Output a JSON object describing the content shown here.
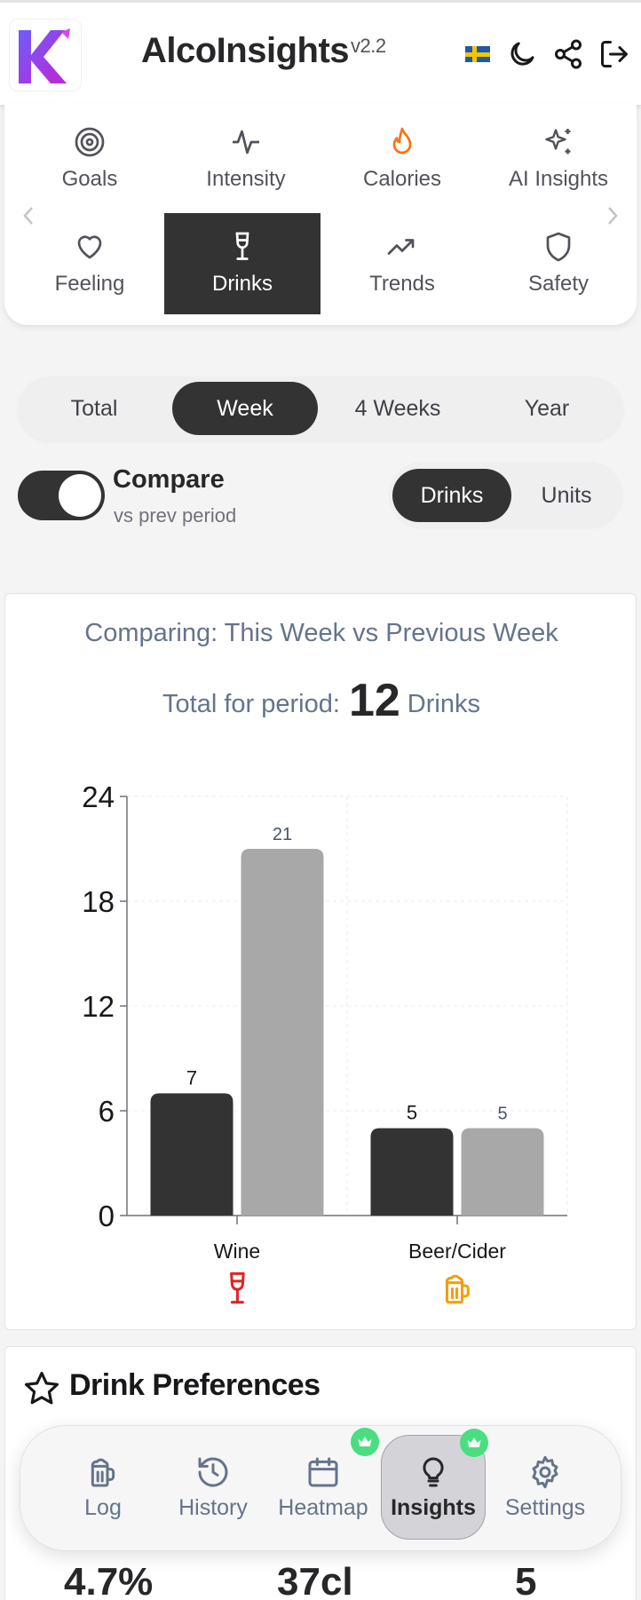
{
  "header": {
    "title": "AlcoInsights",
    "version": "v2.2",
    "icons": [
      "swedish-flag-icon",
      "moon-icon",
      "share-icon",
      "logout-icon"
    ]
  },
  "nav": {
    "items": [
      {
        "id": "goals",
        "label": "Goals",
        "icon": "target-icon"
      },
      {
        "id": "intensity",
        "label": "Intensity",
        "icon": "pulse-icon"
      },
      {
        "id": "calories",
        "label": "Calories",
        "icon": "flame-icon"
      },
      {
        "id": "ai-insights",
        "label": "AI Insights",
        "icon": "sparkles-icon"
      },
      {
        "id": "feeling",
        "label": "Feeling",
        "icon": "heart-icon"
      },
      {
        "id": "drinks",
        "label": "Drinks",
        "icon": "wine-glass-icon",
        "active": true
      },
      {
        "id": "trends",
        "label": "Trends",
        "icon": "trend-up-icon"
      },
      {
        "id": "safety",
        "label": "Safety",
        "icon": "shield-icon"
      }
    ]
  },
  "period_tabs": [
    "Total",
    "Week",
    "4 Weeks",
    "Year"
  ],
  "period_active": "Week",
  "compare": {
    "label": "Compare",
    "sub": "vs prev period",
    "enabled": true
  },
  "unit_toggle": [
    "Drinks",
    "Units"
  ],
  "unit_active": "Drinks",
  "chart_card": {
    "heading": "Comparing: This Week vs Previous Week",
    "total_prefix": "Total for period:",
    "total_value": "12",
    "total_unit": "Drinks"
  },
  "chart_data": {
    "type": "bar",
    "categories": [
      "Wine",
      "Beer/Cider"
    ],
    "category_icons": [
      "wine-glass-icon",
      "beer-mug-icon"
    ],
    "series": [
      {
        "values": [
          7,
          5
        ],
        "color": "#333333"
      },
      {
        "values": [
          21,
          5
        ],
        "color": "#a8a8a8"
      }
    ],
    "yticks": [
      0,
      6,
      12,
      18,
      24
    ],
    "ylim": [
      0,
      24
    ],
    "grid": true
  },
  "preferences": {
    "title": "Drink Preferences",
    "stats_peek": [
      "4.7%",
      "37cl",
      "5"
    ]
  },
  "dock": {
    "items": [
      {
        "id": "log",
        "label": "Log",
        "icon": "beer-mug-icon"
      },
      {
        "id": "history",
        "label": "History",
        "icon": "history-icon"
      },
      {
        "id": "heatmap",
        "label": "Heatmap",
        "icon": "calendar-icon",
        "premium": true
      },
      {
        "id": "insights",
        "label": "Insights",
        "icon": "lightbulb-icon",
        "premium": true,
        "active": true
      },
      {
        "id": "settings",
        "label": "Settings",
        "icon": "gear-icon"
      }
    ]
  }
}
